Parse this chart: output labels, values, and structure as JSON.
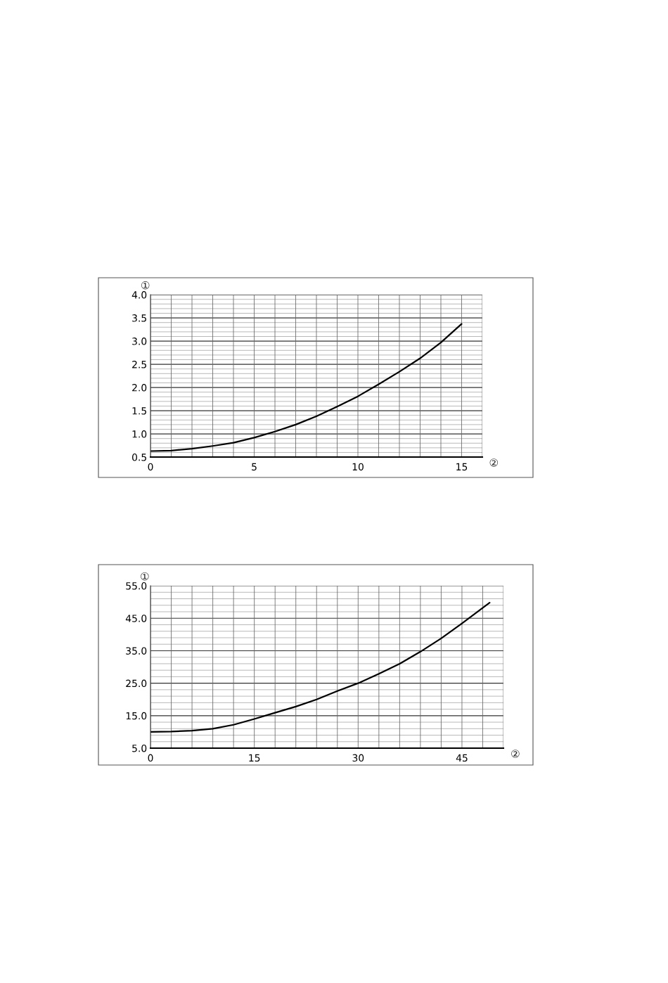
{
  "chart_data": [
    {
      "type": "line",
      "xlabel": "②",
      "ylabel": "①",
      "xlim": [
        0,
        16
      ],
      "ylim": [
        0.5,
        4.0
      ],
      "xticks": [
        0,
        5,
        10,
        15
      ],
      "yticks": [
        {
          "value": 0.5,
          "label": "0.5"
        },
        {
          "value": 1.0,
          "label": "1.0"
        },
        {
          "value": 1.5,
          "label": "1.5"
        },
        {
          "value": 2.0,
          "label": "2.0"
        },
        {
          "value": 2.5,
          "label": "2.5"
        },
        {
          "value": 3.0,
          "label": "3.0"
        },
        {
          "value": 3.5,
          "label": "3.5"
        },
        {
          "value": 4.0,
          "label": "4.0"
        }
      ],
      "grid": true,
      "marker": "none",
      "line_style": "solid",
      "x": [
        0,
        1,
        2,
        3,
        4,
        5,
        6,
        7,
        8,
        9,
        10,
        11,
        12,
        13,
        14,
        15
      ],
      "series": [
        {
          "color": "#000000",
          "values": [
            0.63,
            0.64,
            0.68,
            0.74,
            0.81,
            0.92,
            1.05,
            1.2,
            1.38,
            1.59,
            1.81,
            2.07,
            2.34,
            2.63,
            2.97,
            3.37
          ]
        }
      ]
    },
    {
      "type": "line",
      "xlabel": "②",
      "ylabel": "①",
      "xlim": [
        0,
        51
      ],
      "ylim": [
        5.0,
        55.0
      ],
      "xticks": [
        0,
        15,
        30,
        45
      ],
      "yticks": [
        {
          "value": 5,
          "label": "5.0"
        },
        {
          "value": 15,
          "label": "15.0"
        },
        {
          "value": 25,
          "label": "25.0"
        },
        {
          "value": 35,
          "label": "35.0"
        },
        {
          "value": 45,
          "label": "45.0"
        },
        {
          "value": 55,
          "label": "55.0"
        }
      ],
      "grid": true,
      "marker": "none",
      "line_style": "solid",
      "x": [
        0,
        3,
        6,
        9,
        12,
        15,
        18,
        21,
        24,
        27,
        30,
        33,
        36,
        39,
        42,
        45,
        49
      ],
      "series": [
        {
          "color": "#000000",
          "values": [
            10.0,
            10.1,
            10.4,
            11.0,
            12.2,
            14.0,
            15.9,
            17.8,
            20.0,
            22.6,
            25.0,
            27.9,
            31.0,
            34.7,
            38.8,
            43.4,
            49.8
          ]
        }
      ]
    }
  ]
}
